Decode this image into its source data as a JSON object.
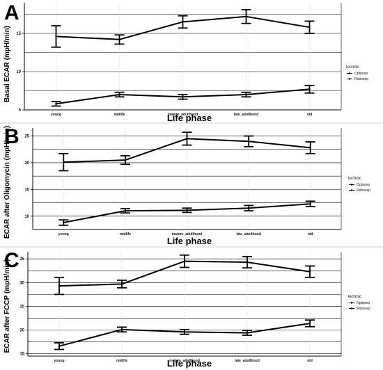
{
  "chart_data": [
    {
      "type": "line",
      "panel_label": "A",
      "title": "",
      "xlabel": "Life phase",
      "ylabel": "Basal ECAR (mpH/min)",
      "categories": [
        "young",
        "midlife",
        "mature_adulthood",
        "late_adulthood",
        "old"
      ],
      "ylim": [
        5,
        19
      ],
      "yticks": [
        5,
        10,
        15
      ],
      "grid": true,
      "legend": {
        "title": "technic",
        "position": "right",
        "entries": [
          "Optiprep",
          "Robosep"
        ]
      },
      "series": [
        {
          "values": [
            14.6,
            14.2,
            16.5,
            17.2,
            15.8
          ],
          "errors": [
            1.4,
            0.6,
            0.8,
            0.9,
            0.8
          ]
        },
        {
          "values": [
            5.8,
            7.0,
            6.7,
            7.0,
            7.7
          ],
          "errors": [
            0.3,
            0.3,
            0.3,
            0.3,
            0.5
          ]
        }
      ]
    },
    {
      "type": "line",
      "panel_label": "B",
      "title": "",
      "xlabel": "Life phase",
      "ylabel": "ECAR after Oligomycin (mpH/min)",
      "categories": [
        "young",
        "midlife",
        "mature_adulthood",
        "late_adulthood",
        "old"
      ],
      "ylim": [
        7.5,
        26.5
      ],
      "yticks": [
        10,
        15,
        20,
        25
      ],
      "grid": true,
      "legend": {
        "title": "technic",
        "position": "right",
        "entries": [
          "Optiprep",
          "Robosep"
        ]
      },
      "series": [
        {
          "values": [
            20.1,
            20.5,
            24.5,
            24.0,
            22.8
          ],
          "errors": [
            1.6,
            0.8,
            1.2,
            1.0,
            1.1
          ]
        },
        {
          "values": [
            8.8,
            11.0,
            11.1,
            11.5,
            12.3
          ],
          "errors": [
            0.5,
            0.4,
            0.4,
            0.5,
            0.5
          ]
        }
      ]
    },
    {
      "type": "line",
      "panel_label": "C",
      "title": "",
      "xlabel": "Life phase",
      "ylabel": "ECAR after FCCP (mpH/min)",
      "categories": [
        "young",
        "midlife",
        "mature_adulthood",
        "late_adulthood",
        "old"
      ],
      "ylim": [
        14.5,
        36.5
      ],
      "yticks": [
        15,
        20,
        25,
        30,
        35
      ],
      "grid": true,
      "legend": {
        "title": "technic",
        "position": "right",
        "entries": [
          "Optiprep",
          "Robosep"
        ]
      },
      "series": [
        {
          "values": [
            29.3,
            29.7,
            34.5,
            34.3,
            32.3
          ],
          "errors": [
            1.8,
            0.8,
            1.3,
            1.2,
            1.2
          ]
        },
        {
          "values": [
            16.6,
            20.1,
            19.6,
            19.4,
            21.4
          ],
          "errors": [
            0.7,
            0.5,
            0.5,
            0.5,
            0.7
          ]
        }
      ]
    }
  ]
}
